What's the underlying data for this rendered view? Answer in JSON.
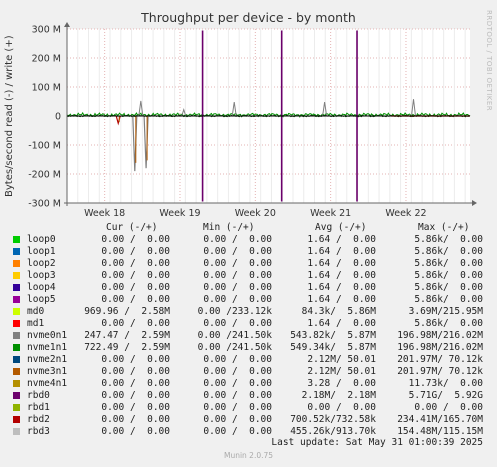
{
  "chart_data": {
    "type": "line",
    "title": "Throughput per device - by month",
    "ylabel": "Bytes/second read (-) / write (+)",
    "ylim": [
      -300000000,
      300000000
    ],
    "y_ticks": [
      "300 M",
      "200 M",
      "100 M",
      "0",
      "-100 M",
      "-200 M",
      "-300 M"
    ],
    "y_tick_values": [
      300000000,
      200000000,
      100000000,
      0,
      -100000000,
      -200000000,
      -300000000
    ],
    "x_ticks": [
      "Week 18",
      "Week 19",
      "Week 20",
      "Week 21",
      "Week 22"
    ],
    "x_tick_positions": [
      1,
      2,
      3,
      4,
      5
    ],
    "xlim": [
      0.5,
      5.85
    ],
    "grid": true,
    "spikes": [
      {
        "series": "rbd0",
        "x": 2.3,
        "write": 295000000,
        "read": -295000000
      },
      {
        "series": "rbd0",
        "x": 3.35,
        "write": 295000000,
        "read": -295000000
      },
      {
        "series": "rbd0",
        "x": 4.35,
        "write": 295000000,
        "read": -295000000
      }
    ],
    "read_dips": [
      {
        "series": "nvme0n1",
        "x": 1.4,
        "read": -190000000
      },
      {
        "series": "nvme0n1",
        "x": 1.55,
        "read": -180000000
      },
      {
        "series": "rbd2",
        "x": 1.18,
        "read": -25000000
      }
    ],
    "write_peaks": [
      {
        "series": "nvme0n1",
        "x": 1.48,
        "write": 52000000
      },
      {
        "series": "nvme0n1",
        "x": 2.05,
        "write": 22000000
      },
      {
        "series": "nvme0n1",
        "x": 2.72,
        "write": 48000000
      },
      {
        "series": "nvme0n1",
        "x": 3.92,
        "write": 48000000
      },
      {
        "series": "nvme0n1",
        "x": 5.1,
        "write": 58000000
      }
    ]
  },
  "side_label": "RRDTOOL / TOBI OETIKER",
  "legend": {
    "headers": [
      "Cur (-/+)",
      "Min (-/+)",
      "Avg (-/+)",
      "Max (-/+)"
    ],
    "rows": [
      {
        "name": "loop0",
        "color": "#00cc00",
        "cur": "0.00 /  0.00",
        "min": "0.00 /  0.00",
        "avg": "1.64 /  0.00",
        "max": "5.86k/  0.00"
      },
      {
        "name": "loop1",
        "color": "#0066b3",
        "cur": "0.00 /  0.00",
        "min": "0.00 /  0.00",
        "avg": "1.64 /  0.00",
        "max": "5.86k/  0.00"
      },
      {
        "name": "loop2",
        "color": "#ff8000",
        "cur": "0.00 /  0.00",
        "min": "0.00 /  0.00",
        "avg": "1.64 /  0.00",
        "max": "5.86k/  0.00"
      },
      {
        "name": "loop3",
        "color": "#ffcc00",
        "cur": "0.00 /  0.00",
        "min": "0.00 /  0.00",
        "avg": "1.64 /  0.00",
        "max": "5.86k/  0.00"
      },
      {
        "name": "loop4",
        "color": "#330099",
        "cur": "0.00 /  0.00",
        "min": "0.00 /  0.00",
        "avg": "1.64 /  0.00",
        "max": "5.86k/  0.00"
      },
      {
        "name": "loop5",
        "color": "#990099",
        "cur": "0.00 /  0.00",
        "min": "0.00 /  0.00",
        "avg": "1.64 /  0.00",
        "max": "5.86k/  0.00"
      },
      {
        "name": "md0",
        "color": "#ccff00",
        "cur": "969.96 /  2.58M",
        "min": "0.00 /233.12k",
        "avg": "84.3k/  5.86M",
        "max": "3.69M/215.95M"
      },
      {
        "name": "md1",
        "color": "#ff0000",
        "cur": "0.00 /  0.00",
        "min": "0.00 /  0.00",
        "avg": "1.64 /  0.00",
        "max": "5.86k/  0.00"
      },
      {
        "name": "nvme0n1",
        "color": "#808080",
        "cur": "247.47 /  2.59M",
        "min": "0.00 /241.50k",
        "avg": "543.82k/  5.87M",
        "max": "196.98M/216.02M"
      },
      {
        "name": "nvme1n1",
        "color": "#008f00",
        "cur": "722.49 /  2.59M",
        "min": "0.00 /241.50k",
        "avg": "549.34k/  5.87M",
        "max": "196.98M/216.02M"
      },
      {
        "name": "nvme2n1",
        "color": "#00487d",
        "cur": "0.00 /  0.00",
        "min": "0.00 /  0.00",
        "avg": "2.12M/ 50.01",
        "max": "201.97M/ 70.12k"
      },
      {
        "name": "nvme3n1",
        "color": "#b35a00",
        "cur": "0.00 /  0.00",
        "min": "0.00 /  0.00",
        "avg": "2.12M/ 50.01",
        "max": "201.97M/ 70.12k"
      },
      {
        "name": "nvme4n1",
        "color": "#b38f00",
        "cur": "0.00 /  0.00",
        "min": "0.00 /  0.00",
        "avg": "3.28 /  0.00",
        "max": "11.73k/  0.00"
      },
      {
        "name": "rbd0",
        "color": "#6b006b",
        "cur": "0.00 /  0.00",
        "min": "0.00 /  0.00",
        "avg": "2.18M/  2.18M",
        "max": "5.71G/  5.92G"
      },
      {
        "name": "rbd1",
        "color": "#8fb300",
        "cur": "0.00 /  0.00",
        "min": "0.00 /  0.00",
        "avg": "0.00 /  0.00",
        "max": "0.00 /  0.00"
      },
      {
        "name": "rbd2",
        "color": "#b30000",
        "cur": "0.00 /  0.00",
        "min": "0.00 /  0.00",
        "avg": "700.52k/732.58k",
        "max": "234.41M/165.70M"
      },
      {
        "name": "rbd3",
        "color": "#bebebe",
        "cur": "0.00 /  0.00",
        "min": "0.00 /  0.00",
        "avg": "455.26k/913.70k",
        "max": "154.48M/115.15M"
      }
    ]
  },
  "last_update": "Last update: Sat May 31 01:00:39 2025",
  "footer": "Munin 2.0.75"
}
